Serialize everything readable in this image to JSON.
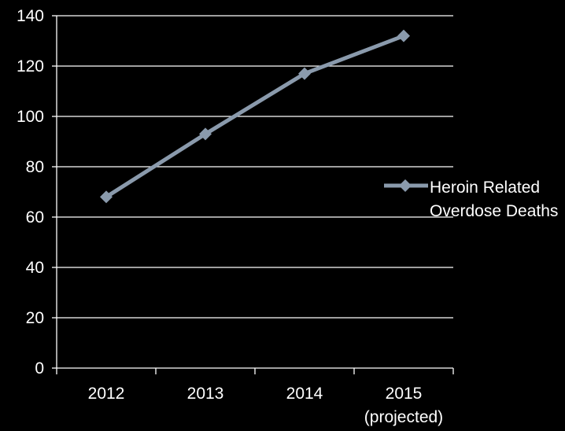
{
  "chart_data": {
    "type": "line",
    "title": "",
    "xlabel": "",
    "ylabel": "",
    "categories": [
      [
        "2012"
      ],
      [
        "2013"
      ],
      [
        "2014"
      ],
      [
        "2015",
        "(projected)"
      ]
    ],
    "series": [
      {
        "name_lines": [
          "Heroin Related",
          "Overdose Deaths"
        ],
        "values": [
          68,
          93,
          117,
          132
        ],
        "marker": "diamond"
      }
    ],
    "ylim": [
      0,
      140
    ],
    "yticks": [
      0,
      20,
      40,
      60,
      80,
      100,
      120,
      140
    ],
    "grid": true,
    "legend_position": "right",
    "colors": {
      "background": "#000000",
      "text": "#ffffff",
      "grid": "#ffffff",
      "axis": "#ffffff",
      "series": "#8a9aac"
    }
  }
}
